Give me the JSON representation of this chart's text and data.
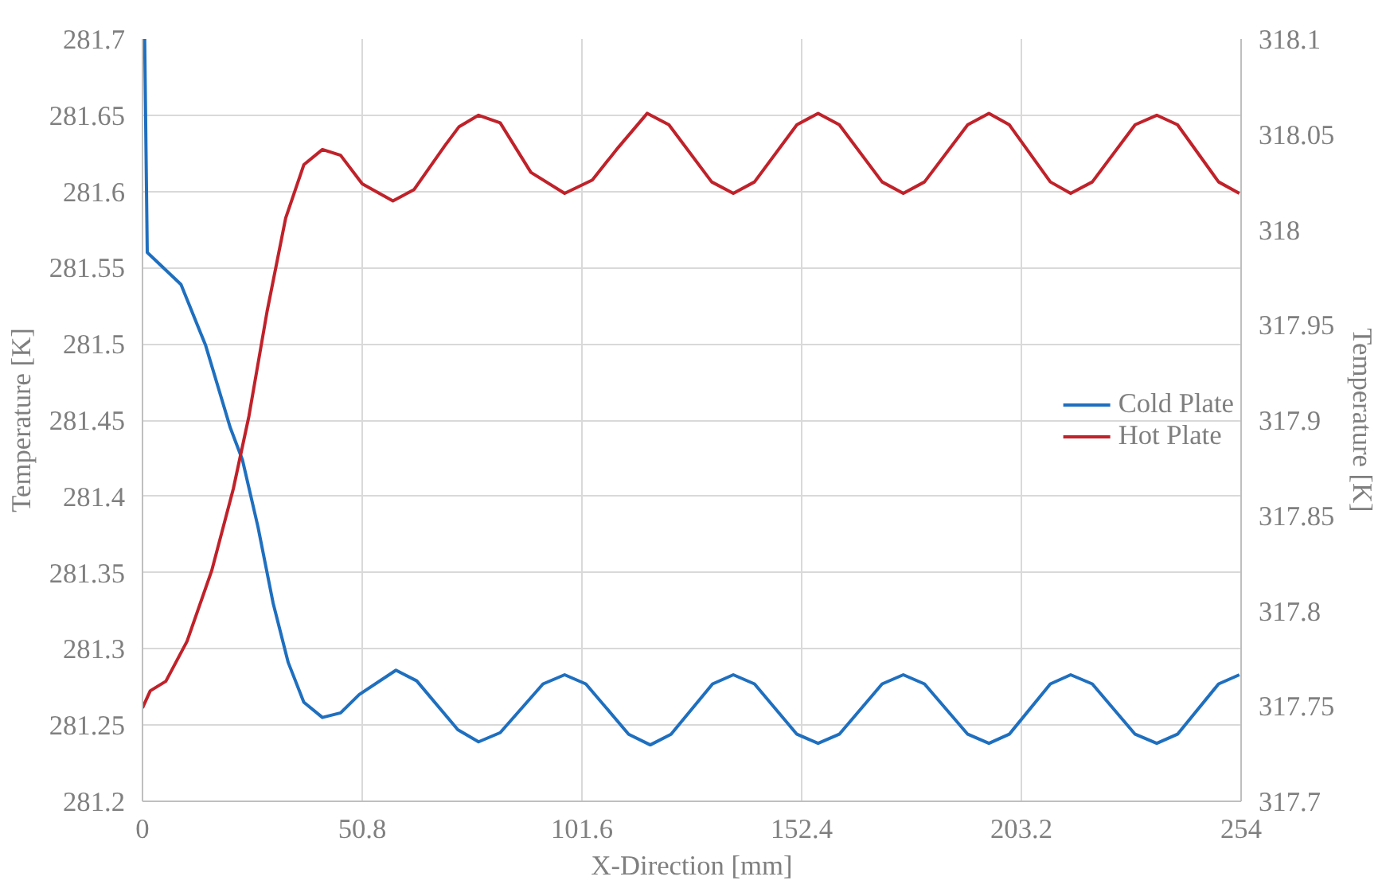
{
  "chart_data": {
    "type": "line",
    "xlabel": "X-Direction [mm]",
    "ylabel": "Temperature [K]",
    "y2label": "Temperature [K]",
    "xlim": [
      0,
      254
    ],
    "xticks": [
      0,
      50.8,
      101.6,
      152.4,
      203.2,
      254
    ],
    "ylim": [
      281.2,
      281.7
    ],
    "yticks": [
      281.2,
      281.25,
      281.3,
      281.35,
      281.4,
      281.45,
      281.5,
      281.55,
      281.6,
      281.65,
      281.7
    ],
    "y2lim": [
      317.7,
      318.1
    ],
    "y2ticks": [
      317.7,
      317.75,
      317.8,
      317.85,
      317.9,
      317.95,
      318,
      318.05,
      318.1
    ],
    "grid": true,
    "legend": "right",
    "line_style": "solid",
    "marker": "none",
    "series": [
      {
        "name": "Cold Plate",
        "color": "#1f6fbf",
        "x": [
          0.5,
          1.1,
          8.9,
          14.6,
          20.3,
          23.1,
          26.7,
          30.2,
          33.7,
          37.3,
          41.6,
          45.8,
          50.1,
          58.6,
          63.4,
          72.9,
          77.7,
          82.7,
          92.6,
          97.6,
          102.5,
          112.4,
          117.4,
          122.2,
          131.8,
          136.6,
          141.5,
          151.3,
          156.2,
          161.1,
          171,
          175.9,
          180.8,
          190.8,
          195.7,
          200.4,
          209.9,
          214.6,
          219.6,
          229.5,
          234.5,
          239.3,
          248.8,
          253.6
        ],
        "values": [
          281.7,
          281.56,
          281.539,
          281.499,
          281.445,
          281.424,
          281.38,
          281.33,
          281.291,
          281.265,
          281.255,
          281.258,
          281.27,
          281.286,
          281.279,
          281.247,
          281.239,
          281.245,
          281.277,
          281.283,
          281.277,
          281.244,
          281.237,
          281.244,
          281.277,
          281.283,
          281.277,
          281.244,
          281.238,
          281.244,
          281.277,
          281.283,
          281.277,
          281.244,
          281.238,
          281.244,
          281.277,
          281.283,
          281.277,
          281.244,
          281.238,
          281.244,
          281.277,
          281.283
        ]
      },
      {
        "name": "Hot Plate",
        "color": "#c0222a",
        "axis": "y2",
        "x": [
          0,
          1.8,
          5.4,
          10.3,
          16.0,
          21.0,
          24.6,
          28.8,
          33.1,
          37.3,
          41.6,
          45.8,
          50.8,
          57.9,
          62.8,
          69.9,
          73.2,
          77.7,
          82.7,
          89.8,
          97.6,
          104,
          109.6,
          116.7,
          121.7,
          131.6,
          136.6,
          141.5,
          151.3,
          156.2,
          161.1,
          171,
          175.9,
          180.8,
          190.8,
          195.7,
          200.4,
          209.9,
          214.6,
          219.6,
          229.5,
          234.5,
          239.3,
          248.8,
          253.6
        ],
        "values": [
          317.749,
          317.758,
          317.763,
          317.784,
          317.821,
          317.864,
          317.902,
          317.957,
          318.006,
          318.034,
          318.042,
          318.039,
          318.024,
          318.015,
          318.021,
          318.044,
          318.054,
          318.06,
          318.056,
          318.03,
          318.019,
          318.026,
          318.042,
          318.061,
          318.055,
          318.025,
          318.019,
          318.025,
          318.055,
          318.061,
          318.055,
          318.025,
          318.019,
          318.025,
          318.055,
          318.061,
          318.055,
          318.025,
          318.019,
          318.025,
          318.055,
          318.06,
          318.055,
          318.025,
          318.019
        ]
      }
    ]
  }
}
